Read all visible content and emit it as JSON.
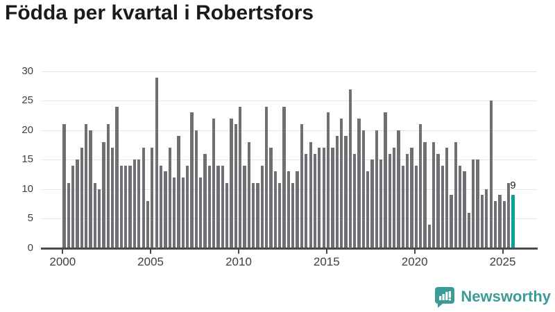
{
  "title": "Födda per kvartal i Robertsfors",
  "colors": {
    "bar_gray": "#6f7074",
    "accent_teal": "#00a39d",
    "brand_teal": "#3d9b95",
    "axis": "#4a4a4a",
    "gridline": "#e4e4e4"
  },
  "chart_data": {
    "type": "bar",
    "title": "Födda per kvartal i Robertsfors",
    "frequency": "quarterly",
    "start": "2000 Q1",
    "end": "2025 Q3",
    "ylim": [
      0,
      30
    ],
    "yticks": [
      0,
      5,
      10,
      15,
      20,
      25,
      30
    ],
    "xticks": [
      2000,
      2005,
      2010,
      2015,
      2020,
      2025
    ],
    "grid": true,
    "xlabel": "",
    "ylabel": "",
    "values_by_year": {
      "2000": [
        21,
        11,
        14,
        15
      ],
      "2001": [
        17,
        21,
        20,
        11
      ],
      "2002": [
        10,
        18,
        21,
        17
      ],
      "2003": [
        24,
        14,
        14,
        14
      ],
      "2004": [
        15,
        15,
        17,
        8
      ],
      "2005": [
        17,
        29,
        14,
        13
      ],
      "2006": [
        17,
        12,
        19,
        12
      ],
      "2007": [
        14,
        23,
        20,
        12
      ],
      "2008": [
        16,
        14,
        22,
        14
      ],
      "2009": [
        14,
        11,
        22,
        21
      ],
      "2010": [
        24,
        14,
        18,
        11
      ],
      "2011": [
        11,
        14,
        24,
        17
      ],
      "2012": [
        13,
        11,
        24,
        13
      ],
      "2013": [
        11,
        13,
        21,
        16
      ],
      "2014": [
        18,
        16,
        17,
        17
      ],
      "2015": [
        23,
        17,
        19,
        22
      ],
      "2016": [
        19,
        27,
        16,
        22
      ],
      "2017": [
        20,
        13,
        15,
        20
      ],
      "2018": [
        15,
        23,
        16,
        17
      ],
      "2019": [
        20,
        14,
        16,
        17
      ],
      "2020": [
        14,
        21,
        18,
        4
      ],
      "2021": [
        18,
        16,
        14,
        17
      ],
      "2022": [
        9,
        18,
        14,
        13
      ],
      "2023": [
        6,
        15,
        15,
        9
      ],
      "2024": [
        10,
        25,
        8,
        9
      ],
      "2025": [
        8,
        11,
        9
      ]
    },
    "highlight": {
      "year": 2025,
      "quarter": "Q3",
      "value": 9,
      "label": "9"
    },
    "legend": null
  },
  "footer": {
    "brand": "Newsworthy"
  }
}
